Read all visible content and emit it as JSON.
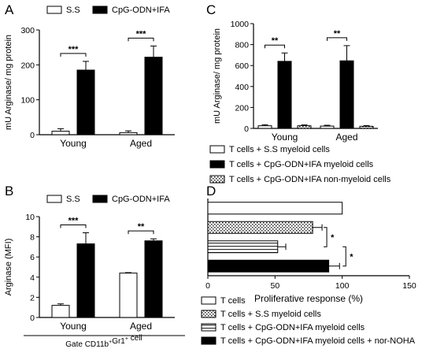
{
  "colors": {
    "black": "#000000",
    "white": "#ffffff",
    "gray_edge": "#444444",
    "hatch": "#555555"
  },
  "chart_data": [
    {
      "panel": "A",
      "type": "bar",
      "ylabel": "mU Arginase/ mg protein",
      "ylim": [
        0,
        300
      ],
      "yticks": [
        "0",
        "100",
        "200",
        "300"
      ],
      "categories": [
        "Young",
        "Aged"
      ],
      "series": [
        {
          "name": "S.S",
          "fill": "white",
          "values": [
            10,
            6
          ],
          "errors": [
            7,
            5
          ]
        },
        {
          "name": "CpG-ODN+IFA",
          "fill": "black",
          "values": [
            185,
            222
          ],
          "errors": [
            25,
            32
          ]
        }
      ],
      "significance": [
        "***",
        "***"
      ],
      "legend": "top"
    },
    {
      "panel": "B",
      "type": "bar",
      "ylabel": "Arginase (MFI)",
      "ylim": [
        0,
        10
      ],
      "yticks": [
        "0",
        "2",
        "4",
        "6",
        "8",
        "10"
      ],
      "categories": [
        "Young",
        "Aged"
      ],
      "series": [
        {
          "name": "S.S",
          "fill": "white",
          "values": [
            1.2,
            4.4
          ],
          "errors": [
            0.15,
            0.05
          ]
        },
        {
          "name": "CpG-ODN+IFA",
          "fill": "black",
          "values": [
            7.3,
            7.6
          ],
          "errors": [
            1.1,
            0.2
          ]
        }
      ],
      "significance": [
        "***",
        "**"
      ],
      "footnote_prefix": "Gate CD11b",
      "footnote_mid": "Gr1",
      "footnote_suffix": "cell",
      "sup": "+",
      "legend": "top"
    },
    {
      "panel": "C",
      "type": "bar",
      "ylabel": "mU Arginase/ mg protein",
      "ylim": [
        0,
        1000
      ],
      "yticks": [
        "0",
        "200",
        "400",
        "600",
        "800",
        "1000"
      ],
      "categories": [
        "Young",
        "Aged"
      ],
      "series": [
        {
          "name": "T cells + S.S myeloid cells",
          "fill": "white",
          "values": [
            25,
            22
          ],
          "errors": [
            10,
            8
          ]
        },
        {
          "name": "T cells + CpG-ODN+IFA myeloid cells",
          "fill": "black",
          "values": [
            640,
            645
          ],
          "errors": [
            80,
            145
          ]
        },
        {
          "name": "T cells + CpG-ODN+IFA non-myeloid cells",
          "fill": "hatch",
          "values": [
            25,
            20
          ],
          "errors": [
            8,
            6
          ]
        }
      ],
      "significance": [
        "**",
        "**"
      ],
      "legend": "bottom"
    },
    {
      "panel": "D",
      "type": "bar",
      "orientation": "horizontal",
      "xlabel": "Proliferative response (%)",
      "xlim": [
        0,
        150
      ],
      "xticks": [
        "0",
        "50",
        "100",
        "150"
      ],
      "categories": [
        "T cells",
        "T cells + S.S myeloid cells",
        "T cells + CpG-ODN+IFA myeloid cells",
        "T cells + CpG-ODN+IFA myeloid cells + nor-NOHA"
      ],
      "values": [
        100,
        78,
        52,
        90
      ],
      "errors": [
        0,
        7,
        6,
        8
      ],
      "fills": [
        "white",
        "hatch",
        "hlines",
        "black"
      ],
      "significance": [
        "*",
        "*"
      ],
      "legend": "bottom"
    }
  ]
}
